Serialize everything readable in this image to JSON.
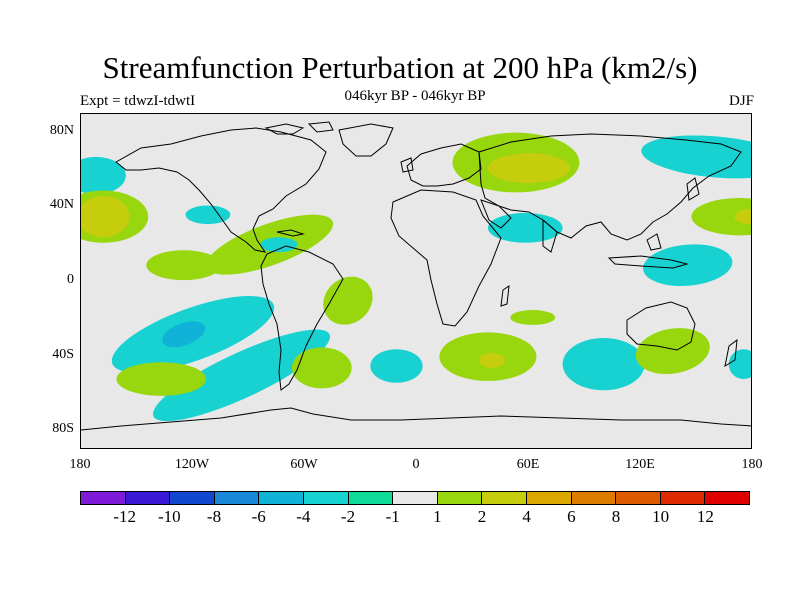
{
  "title": "Streamfunction Perturbation at 200 hPa (km2/s)",
  "subtitle_left": "Expt = tdwzI-tdwtI",
  "subtitle_center": "046kyr BP - 046kyr BP",
  "subtitle_right": "DJF",
  "map": {
    "projection": "cylindrical equidistant",
    "lon_range": [
      -180,
      180
    ],
    "lat_range": [
      -90,
      90
    ],
    "background_color": "#e8e8e8",
    "coastline_color": "#000000",
    "ytick_labels": [
      "80N",
      "40N",
      "0",
      "40S",
      "80S"
    ],
    "xtick_labels": [
      "180",
      "120W",
      "60W",
      "0",
      "60E",
      "120E",
      "180"
    ],
    "anomaly_regions": [
      {
        "lon": -172,
        "lat": 57,
        "level": -2
      },
      {
        "lon": -168,
        "lat": 35,
        "level": 2
      },
      {
        "lon": -168,
        "lat": 35,
        "level": 4
      },
      {
        "lon": -125,
        "lat": 9,
        "level": 2
      },
      {
        "lon": -120,
        "lat": -28,
        "level": -2
      },
      {
        "lon": -125,
        "lat": -28,
        "level": -4
      },
      {
        "lon": -94,
        "lat": -50,
        "level": -2
      },
      {
        "lon": -137,
        "lat": -52,
        "level": 2
      },
      {
        "lon": -112,
        "lat": 36,
        "level": -2
      },
      {
        "lon": -79,
        "lat": 20,
        "level": 2
      },
      {
        "lon": -74,
        "lat": 20,
        "level": -2
      },
      {
        "lon": -51,
        "lat": -46,
        "level": 2
      },
      {
        "lon": -37,
        "lat": -10,
        "level": 2
      },
      {
        "lon": -11,
        "lat": -45,
        "level": -2
      },
      {
        "lon": 53,
        "lat": 64,
        "level": 2
      },
      {
        "lon": 60,
        "lat": 61,
        "level": 4
      },
      {
        "lon": 58,
        "lat": 29,
        "level": -2
      },
      {
        "lon": 62,
        "lat": -19,
        "level": 2
      },
      {
        "lon": 38,
        "lat": -40,
        "level": 2
      },
      {
        "lon": 40,
        "lat": -42,
        "level": 4
      },
      {
        "lon": 100,
        "lat": -44,
        "level": -2
      },
      {
        "lon": 137,
        "lat": -37,
        "level": 2
      },
      {
        "lon": 175,
        "lat": -44,
        "level": -2
      },
      {
        "lon": 145,
        "lat": 9,
        "level": -2
      },
      {
        "lon": 173,
        "lat": 35,
        "level": 2
      },
      {
        "lon": 178,
        "lat": 35,
        "level": 4
      },
      {
        "lon": 160,
        "lat": 67,
        "level": -2
      }
    ]
  },
  "colorbar": {
    "labels": [
      "-12",
      "-10",
      "-8",
      "-6",
      "-4",
      "-2",
      "-1",
      "1",
      "2",
      "4",
      "6",
      "8",
      "10",
      "12"
    ],
    "colors": [
      "#7f1ad9",
      "#3a1ad6",
      "#1048d0",
      "#1a88d8",
      "#10b2d8",
      "#18d2d2",
      "#10da98",
      "#e8e8e8",
      "#98d60e",
      "#c6cd0c",
      "#dca700",
      "#de7c00",
      "#de5a00",
      "#de2a00",
      "#e00000"
    ]
  }
}
